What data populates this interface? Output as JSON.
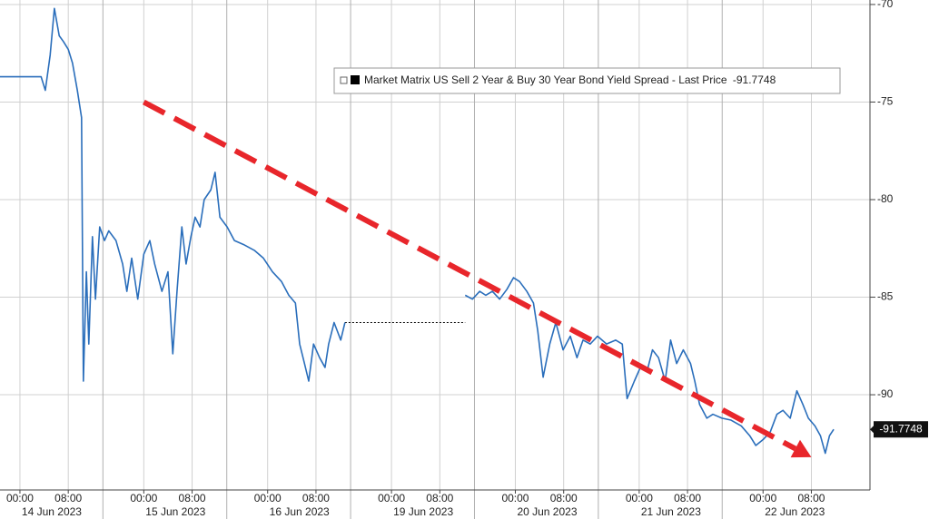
{
  "chart_data": {
    "type": "line",
    "series": [
      {
        "name": "Market Matrix US Sell 2 Year & Buy 30 Year Bond Yield Spread - Last Price",
        "color": "#2a6ebb",
        "x": [
          -3.3,
          3.5,
          4.2,
          5.0,
          5.7,
          6.5,
          7.2,
          8.0,
          8.7,
          9.5,
          10.2,
          10.5,
          11.0,
          11.4,
          12.0,
          12.5,
          13.2,
          14.0,
          14.7,
          15.9,
          17.0,
          17.7,
          18.5,
          19.5,
          20.5,
          21.5,
          22.3,
          23.5,
          24.5,
          25.3,
          26.0,
          26.8,
          27.5,
          28.3,
          29.0,
          29.8,
          30.5,
          31.6,
          32.3,
          33.1,
          34.3,
          35.5,
          37.0,
          38.8,
          40.3,
          41.8,
          43.3,
          44.5,
          45.6,
          46.3,
          47.1,
          47.8,
          48.6,
          49.6,
          50.5,
          51.1,
          52.0,
          53.1,
          53.8,
          63.0,
          73.7,
          74.9,
          76.1,
          77.1,
          78.2,
          79.4,
          80.6,
          81.7,
          82.7,
          83.9,
          85.0,
          85.7,
          86.6,
          87.7,
          88.7,
          89.9,
          91.1,
          92.2,
          93.2,
          94.4,
          95.6,
          97.1,
          98.6,
          99.7,
          100.5,
          101.7,
          102.7,
          103.8,
          104.7,
          105.7,
          106.8,
          107.7,
          108.7,
          109.8,
          111.0,
          111.7,
          112.5,
          113.7,
          114.7,
          116.2,
          117.7,
          119.4,
          120.8,
          121.8,
          123.0,
          124.2,
          125.3,
          126.3,
          127.5,
          128.6,
          129.6,
          130.5,
          131.6,
          132.5,
          133.3,
          134.0,
          134.7
        ],
        "values": [
          -73.7,
          -73.7,
          -74.4,
          -72.6,
          -70.2,
          -71.6,
          -71.9,
          -72.3,
          -73.0,
          -74.4,
          -75.8,
          -89.3,
          -83.7,
          -87.4,
          -81.9,
          -85.1,
          -81.4,
          -82.1,
          -81.6,
          -82.1,
          -83.3,
          -84.7,
          -83.0,
          -85.1,
          -82.8,
          -82.1,
          -83.3,
          -84.7,
          -83.7,
          -87.9,
          -84.7,
          -81.4,
          -83.3,
          -81.9,
          -80.9,
          -81.4,
          -80.0,
          -79.5,
          -78.6,
          -80.9,
          -81.4,
          -82.1,
          -82.3,
          -82.6,
          -83.0,
          -83.7,
          -84.2,
          -84.9,
          -85.3,
          -87.4,
          -88.4,
          -89.3,
          -87.4,
          -88.1,
          -88.6,
          -87.4,
          -86.3,
          -87.2,
          -86.3,
          null,
          -84.9,
          -85.1,
          -84.7,
          -84.9,
          -84.7,
          -85.1,
          -84.6,
          -84.0,
          -84.2,
          -84.7,
          -85.3,
          -86.7,
          -89.1,
          -87.4,
          -86.3,
          -87.7,
          -87.0,
          -88.1,
          -87.2,
          -87.4,
          -87.0,
          -87.4,
          -87.2,
          -87.4,
          -90.2,
          -89.3,
          -88.6,
          -88.8,
          -87.7,
          -88.1,
          -89.3,
          -87.2,
          -88.4,
          -87.7,
          -88.4,
          -89.3,
          -90.5,
          -91.2,
          -91.0,
          -91.2,
          -91.3,
          -91.6,
          -92.1,
          -92.6,
          -92.3,
          -91.9,
          -91.0,
          -90.8,
          -91.2,
          -89.8,
          -90.5,
          -91.2,
          -91.6,
          -92.1,
          -93.0,
          -92.1,
          -91.7748
        ]
      }
    ],
    "last_price": -91.7748,
    "xlim": [
      -3.3,
      140.7
    ],
    "ylim": [
      -94.88,
      -69.77
    ],
    "yticks": [
      -70,
      -75,
      -80,
      -85,
      -90
    ],
    "xticks": [
      {
        "value": 0,
        "label": "00:00"
      },
      {
        "value": 8,
        "label": "08:00"
      },
      {
        "value": 20.5,
        "label": "00:00"
      },
      {
        "value": 28.5,
        "label": "08:00"
      },
      {
        "value": 41,
        "label": "00:00"
      },
      {
        "value": 49,
        "label": "08:00"
      },
      {
        "value": 61.5,
        "label": "00:00"
      },
      {
        "value": 69.5,
        "label": "08:00"
      },
      {
        "value": 82,
        "label": "00:00"
      },
      {
        "value": 90,
        "label": "08:00"
      },
      {
        "value": 102.5,
        "label": "00:00"
      },
      {
        "value": 110.5,
        "label": "08:00"
      },
      {
        "value": 123,
        "label": "00:00"
      },
      {
        "value": 131,
        "label": "08:00"
      }
    ],
    "date_labels": [
      "14 Jun 2023",
      "15 Jun 2023",
      "16 Jun 2023",
      "19 Jun 2023",
      "20 Jun 2023",
      "21 Jun 2023",
      "22 Jun 2023"
    ],
    "trend_line": {
      "x": [
        20.5,
        131
      ],
      "y": [
        -75,
        -93.2
      ],
      "color": "#e8262b"
    },
    "grid": true
  }
}
